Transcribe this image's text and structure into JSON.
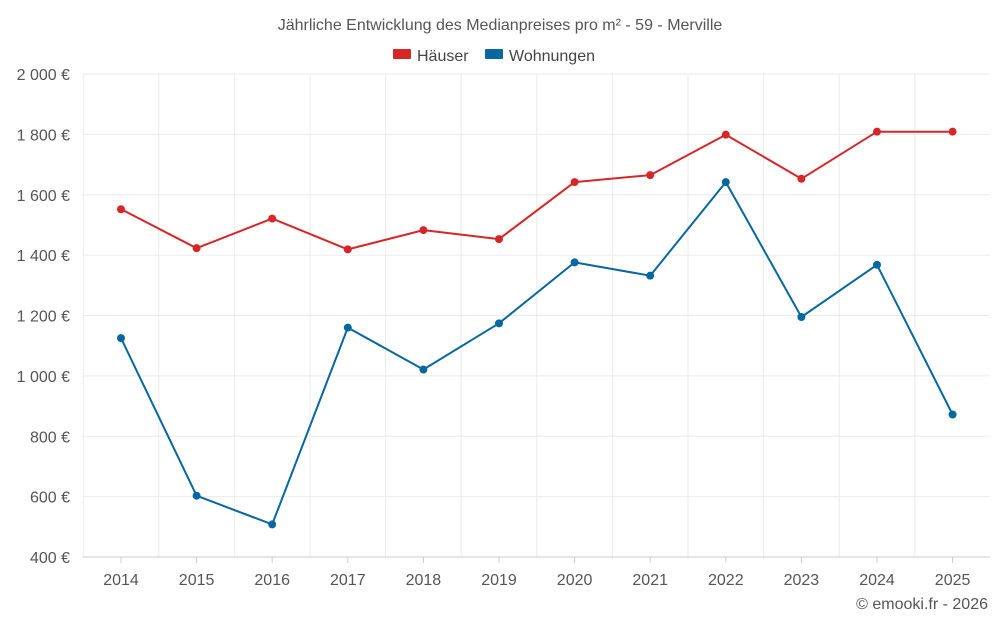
{
  "chart_data": {
    "type": "line",
    "title": "Jährliche Entwicklung des Medianpreises pro m² - 59 - Merville",
    "categories": [
      "2014",
      "2015",
      "2016",
      "2017",
      "2018",
      "2019",
      "2020",
      "2021",
      "2022",
      "2023",
      "2024",
      "2025"
    ],
    "series": [
      {
        "name": "Häuser",
        "color": "#d62728",
        "values": [
          1552,
          1423,
          1521,
          1419,
          1483,
          1453,
          1642,
          1665,
          1799,
          1653,
          1809,
          1809
        ]
      },
      {
        "name": "Wohnungen",
        "color": "#08679e",
        "values": [
          1125,
          603,
          508,
          1160,
          1021,
          1174,
          1376,
          1332,
          1642,
          1195,
          1368,
          872
        ]
      }
    ],
    "ylim": [
      400,
      2000
    ],
    "yticks": [
      400,
      600,
      800,
      1000,
      1200,
      1400,
      1600,
      1800,
      2000
    ],
    "ytick_labels": [
      "400 €",
      "600 €",
      "800 €",
      "1 000 €",
      "1 200 €",
      "1 400 €",
      "1 600 €",
      "1 800 €",
      "2 000 €"
    ],
    "grid": true,
    "legend_position": "top-center",
    "xlabel": "",
    "ylabel": ""
  },
  "credit": "© emooki.fr - 2026"
}
